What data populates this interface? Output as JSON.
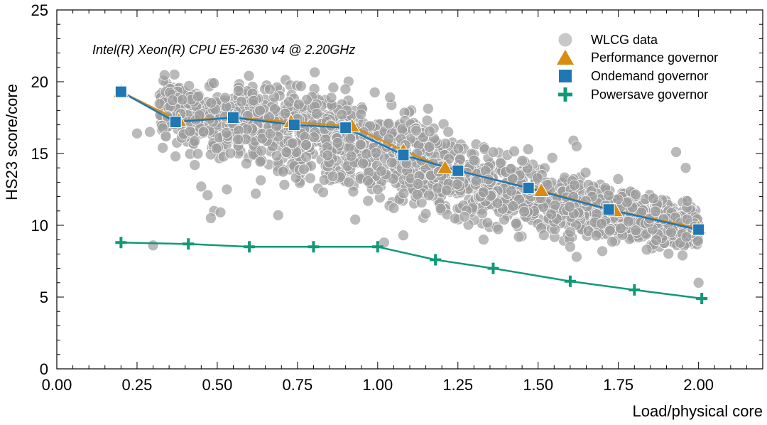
{
  "chart_data": {
    "type": "scatter",
    "annotation": "Intel(R) Xeon(R) CPU E5-2630 v4 @ 2.20GHz",
    "xlabel": "Load/physical core",
    "ylabel": "HS23 score/core",
    "xlim": [
      0,
      2.2
    ],
    "ylim": [
      0,
      25
    ],
    "xticks": [
      "0.00",
      "0.25",
      "0.50",
      "0.75",
      "1.00",
      "1.25",
      "1.50",
      "1.75",
      "2.00"
    ],
    "yticks": [
      "0",
      "5",
      "10",
      "15",
      "20",
      "25"
    ],
    "grid": false,
    "legend_position": "top-right",
    "series": [
      {
        "name": "WLCG data",
        "kind": "scatter-cloud",
        "color": "#a9a9a9",
        "points": [
          [
            0.3,
            8.6
          ],
          [
            0.45,
            12.7
          ],
          [
            0.47,
            12.1
          ],
          [
            0.49,
            11.0
          ],
          [
            0.51,
            10.9
          ],
          [
            0.53,
            12.5
          ],
          [
            0.48,
            10.5
          ],
          [
            0.62,
            12.2
          ],
          [
            0.69,
            10.7
          ],
          [
            0.93,
            10.4
          ],
          [
            0.97,
            11.7
          ],
          [
            1.02,
            8.8
          ],
          [
            1.08,
            9.3
          ],
          [
            1.33,
            9.0
          ],
          [
            1.44,
            9.2
          ],
          [
            1.6,
            8.5
          ],
          [
            1.62,
            7.8
          ],
          [
            1.7,
            8.2
          ],
          [
            1.95,
            7.9
          ],
          [
            2.0,
            6.0
          ],
          [
            1.93,
            15.1
          ],
          [
            1.96,
            14.0
          ],
          [
            1.61,
            15.9
          ],
          [
            1.62,
            15.5
          ],
          [
            1.22,
            16.5
          ],
          [
            1.36,
            15.1
          ],
          [
            1.45,
            14.5
          ],
          [
            0.25,
            16.4
          ],
          [
            0.29,
            16.5
          ],
          [
            0.33,
            15.4
          ],
          [
            0.34,
            16.2
          ],
          [
            0.37,
            14.8
          ],
          [
            0.43,
            14.2
          ],
          [
            0.77,
            13.9
          ],
          [
            0.86,
            13.4
          ],
          [
            1.12,
            16.6
          ],
          [
            0.83,
            12.3
          ],
          [
            0.91,
            13.0
          ],
          [
            1.0,
            12.5
          ],
          [
            1.05,
            11.2
          ],
          [
            1.15,
            10.8
          ],
          [
            1.27,
            10.6
          ]
        ],
        "cloud_trend": [
          [
            0.32,
            18.6,
            1.0
          ],
          [
            0.4,
            17.6,
            1.3
          ],
          [
            0.55,
            17.0,
            1.6
          ],
          [
            0.75,
            16.5,
            1.7
          ],
          [
            0.9,
            16.0,
            1.8
          ],
          [
            1.05,
            14.8,
            1.9
          ],
          [
            1.25,
            13.2,
            1.6
          ],
          [
            1.5,
            11.9,
            1.3
          ],
          [
            1.75,
            10.9,
            1.1
          ],
          [
            2.0,
            9.7,
            0.9
          ]
        ]
      },
      {
        "name": "Performance governor",
        "color": "#d98c10",
        "marker": "triangle",
        "x": [
          0.2,
          0.38,
          0.55,
          0.73,
          0.92,
          1.08,
          1.21,
          1.25,
          1.51,
          1.74,
          2.0
        ],
        "y": [
          19.3,
          17.3,
          17.5,
          17.2,
          16.9,
          15.2,
          14.0,
          13.8,
          12.4,
          11.0,
          9.8
        ]
      },
      {
        "name": "Ondemand governor",
        "color": "#1f77b4",
        "marker": "square",
        "x": [
          0.2,
          0.37,
          0.55,
          0.74,
          0.9,
          1.08,
          1.25,
          1.47,
          1.72,
          2.0
        ],
        "y": [
          19.3,
          17.2,
          17.5,
          17.0,
          16.8,
          14.9,
          13.8,
          12.6,
          11.1,
          9.7
        ]
      },
      {
        "name": "Powersave governor",
        "color": "#119977",
        "marker": "plus",
        "x": [
          0.2,
          0.41,
          0.6,
          0.8,
          1.0,
          1.18,
          1.36,
          1.6,
          1.8,
          2.01
        ],
        "y": [
          8.8,
          8.7,
          8.5,
          8.5,
          8.5,
          7.6,
          7.0,
          6.1,
          5.5,
          4.9
        ]
      }
    ]
  }
}
